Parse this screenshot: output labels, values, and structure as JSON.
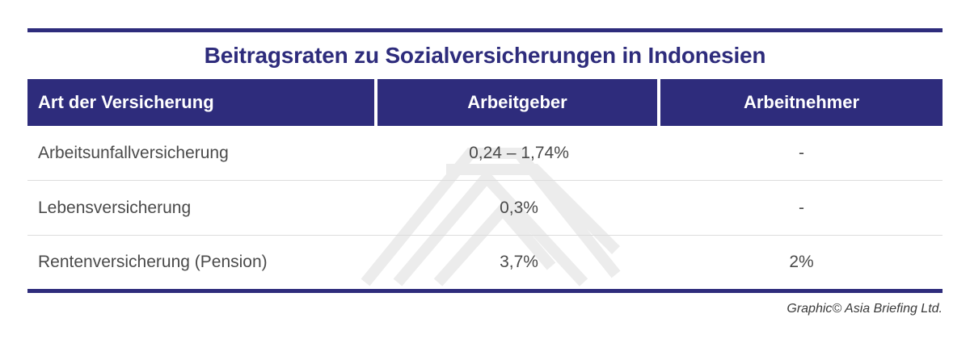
{
  "table": {
    "title": "Beitragsraten zu Sozialversicherungen in Indonesien",
    "headers": [
      "Art der Versicherung",
      "Arbeitgeber",
      "Arbeitnehmer"
    ],
    "rows": [
      [
        "Arbeitsunfallversicherung",
        "0,24 – 1,74%",
        "-"
      ],
      [
        "Lebensversicherung",
        "0,3%",
        "-"
      ],
      [
        "Rentenversicherung (Pension)",
        "3,7%",
        "2%"
      ]
    ]
  },
  "credit": "Graphic© Asia Briefing Ltd.",
  "colors": {
    "header_bg": "#2e2c7c",
    "title_text": "#2e2c7c",
    "body_text": "#4a4a4a"
  }
}
